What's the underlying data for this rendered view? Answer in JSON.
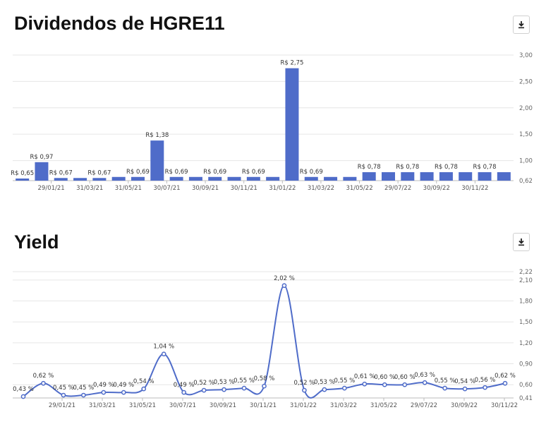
{
  "charts": [
    {
      "title": "Dividendos de HGRE11",
      "download_icon": "download-icon",
      "chart_data": {
        "type": "bar",
        "color": "#4f6cc9",
        "grid": true,
        "ylim": [
          0.62,
          3.0
        ],
        "yticks": [
          "0,62",
          "1,00",
          "1,50",
          "2,00",
          "2,50",
          "3,00"
        ],
        "ytick_values": [
          0.62,
          1.0,
          1.5,
          2.0,
          2.5,
          3.0
        ],
        "xticks": [
          "29/01/21",
          "31/03/21",
          "31/05/21",
          "30/07/21",
          "30/09/21",
          "30/11/21",
          "31/01/22",
          "31/03/22",
          "31/05/22",
          "29/07/22",
          "30/09/22",
          "30/11/22"
        ],
        "values": [
          0.65,
          0.97,
          0.67,
          0.67,
          0.67,
          0.69,
          0.69,
          1.38,
          0.69,
          0.69,
          0.69,
          0.69,
          0.69,
          0.69,
          2.75,
          0.69,
          0.69,
          0.69,
          0.78,
          0.78,
          0.78,
          0.78,
          0.78,
          0.78,
          0.78,
          0.78
        ],
        "data_labels": [
          "R$ 0,65",
          "R$ 0,97",
          "R$ 0,67",
          "",
          "R$ 0,67",
          "",
          "R$ 0,69",
          "R$ 1,38",
          "R$ 0,69",
          "",
          "R$ 0,69",
          "",
          "R$ 0,69",
          "",
          "R$ 2,75",
          "R$ 0,69",
          "",
          "",
          "R$ 0,78",
          "",
          "R$ 0,78",
          "",
          "R$ 0,78",
          "",
          "R$ 0,78",
          ""
        ]
      }
    },
    {
      "title": "Yield",
      "download_icon": "download-icon",
      "chart_data": {
        "type": "line",
        "color": "#4f6cc9",
        "grid": true,
        "ylim": [
          0.41,
          2.22
        ],
        "yticks": [
          "0,41",
          "0,60",
          "0,90",
          "1,20",
          "1,50",
          "1,80",
          "2,10",
          "2,22"
        ],
        "ytick_values": [
          0.41,
          0.6,
          0.9,
          1.2,
          1.5,
          1.8,
          2.1,
          2.22
        ],
        "xticks": [
          "29/01/21",
          "31/03/21",
          "31/05/21",
          "30/07/21",
          "30/09/21",
          "30/11/21",
          "31/01/22",
          "31/03/22",
          "31/05/22",
          "29/07/22",
          "30/09/22",
          "30/11/22"
        ],
        "values": [
          0.43,
          0.62,
          0.45,
          0.45,
          0.49,
          0.49,
          0.54,
          1.04,
          0.49,
          0.52,
          0.53,
          0.55,
          0.58,
          2.02,
          0.52,
          0.53,
          0.55,
          0.61,
          0.6,
          0.6,
          0.63,
          0.55,
          0.54,
          0.56,
          0.62
        ],
        "data_labels": [
          "0,43 %",
          "0,62 %",
          "0,45 %",
          "0,45 %",
          "0,49 %",
          "0,49 %",
          "0,54 %",
          "1,04 %",
          "0,49 %",
          "0,52 %",
          "0,53 %",
          "0,55 %",
          "0,58 %",
          "2,02 %",
          "0,52 %",
          "0,53 %",
          "0,55 %",
          "0,61 %",
          "0,60 %",
          "0,60 %",
          "0,63 %",
          "0,55 %",
          "0,54 %",
          "0,56 %",
          "0,62 %"
        ]
      }
    }
  ]
}
